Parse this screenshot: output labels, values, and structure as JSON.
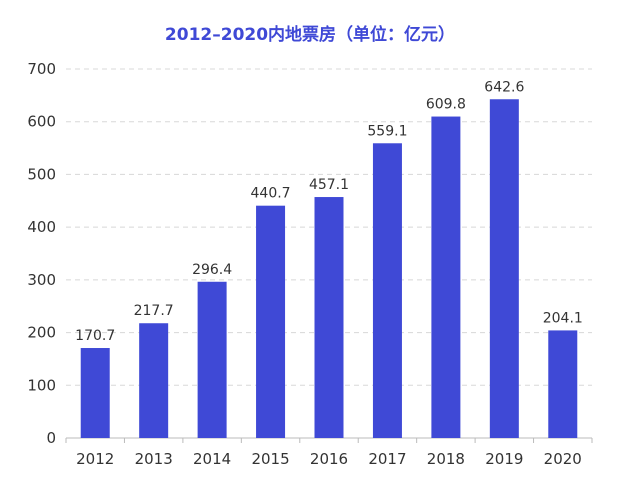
{
  "chart_data": {
    "type": "bar",
    "title": "2012–2020内地票房（单位：亿元）",
    "categories": [
      "2012",
      "2013",
      "2014",
      "2015",
      "2016",
      "2017",
      "2018",
      "2019",
      "2020"
    ],
    "values": [
      170.7,
      217.7,
      296.4,
      440.7,
      457.1,
      559.1,
      609.8,
      642.6,
      204.1
    ],
    "value_labels": [
      "170.7",
      "217.7",
      "296.4",
      "440.7",
      "457.1",
      "559.1",
      "609.8",
      "642.6",
      "204.1"
    ],
    "ylim": [
      0,
      700
    ],
    "yticks": [
      "0",
      "100",
      "200",
      "300",
      "400",
      "500",
      "600",
      "700"
    ],
    "grid": true,
    "bar_color": "#3f49d6",
    "grid_color": "#d8d8d8"
  }
}
